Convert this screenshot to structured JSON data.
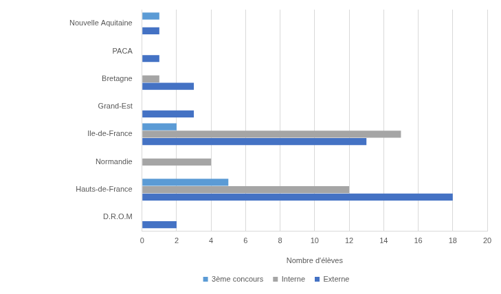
{
  "chart_data": {
    "type": "bar",
    "orientation": "horizontal",
    "categories": [
      "Nouvelle Aquitaine",
      "PACA",
      "Bretagne",
      "Grand-Est",
      "Ile-de-France",
      "Normandie",
      "Hauts-de-France",
      "D.R.O.M"
    ],
    "series": [
      {
        "name": "3ème concours",
        "color": "#5b9bd5",
        "values": [
          1,
          0,
          0,
          0,
          2,
          0,
          5,
          0
        ]
      },
      {
        "name": "Interne",
        "color": "#a5a5a5",
        "values": [
          0,
          0,
          1,
          0,
          15,
          4,
          12,
          0
        ]
      },
      {
        "name": "Externe",
        "color": "#4472c4",
        "values": [
          1,
          1,
          3,
          3,
          13,
          0,
          18,
          2
        ]
      }
    ],
    "x_label": "Nombre d'élèves",
    "xlim": [
      0,
      20
    ],
    "xticks": [
      0,
      2,
      4,
      6,
      8,
      10,
      12,
      14,
      16,
      18,
      20
    ],
    "grid": true,
    "legend": "bottom"
  }
}
